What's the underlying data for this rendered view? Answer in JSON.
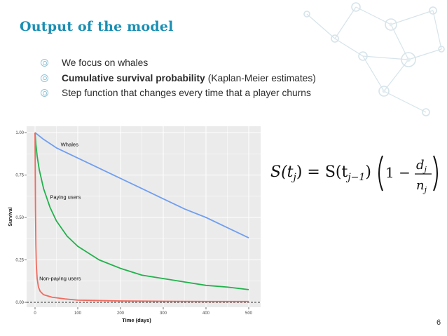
{
  "slide": {
    "title": "Output of the model",
    "page_number": "6"
  },
  "bullets": [
    {
      "strong": "",
      "text": "We focus on whales"
    },
    {
      "strong": "Cumulative survival probability",
      "text": "(Kaplan-Meier estimates)"
    },
    {
      "strong": "",
      "text": "Step function that changes every time that a player churns"
    }
  ],
  "formula": {
    "lhs": "S(t",
    "lhs_sub": "j",
    "eq": ") = S(t",
    "rhs_sub": "j−1",
    "close": ")",
    "one_minus": "1 −",
    "numer": "d",
    "numer_sub": "j",
    "denom": "n",
    "denom_sub": "j"
  },
  "colors": {
    "title": "#1a8fb4",
    "whales": "#6f9ef0",
    "paying": "#22b14c",
    "non_paying": "#f06a5e",
    "panel": "#ebebeb",
    "grid": "#ffffff",
    "decor": "#d6e4ea"
  },
  "chart_data": {
    "type": "line",
    "xlabel": "Time (days)",
    "ylabel": "Survival",
    "xlim": [
      0,
      500
    ],
    "ylim": [
      0,
      1
    ],
    "x_ticks": [
      0,
      100,
      200,
      300,
      400,
      500
    ],
    "x_tick_labels": [
      "0",
      "100",
      "200",
      "300",
      "400",
      "500"
    ],
    "y_ticks": [
      0,
      0.25,
      0.5,
      0.75,
      1
    ],
    "y_tick_labels": [
      "0.00",
      "0.25",
      "0.50",
      "0.75",
      "1.00"
    ],
    "grid": true,
    "reference_line_y": 0,
    "series": [
      {
        "name": "Whales",
        "color_key": "whales",
        "x": [
          0,
          5,
          20,
          50,
          100,
          150,
          200,
          250,
          300,
          350,
          400,
          450,
          500
        ],
        "y": [
          1.0,
          0.99,
          0.96,
          0.91,
          0.85,
          0.79,
          0.73,
          0.67,
          0.61,
          0.55,
          0.5,
          0.44,
          0.38
        ]
      },
      {
        "name": "Paying users",
        "color_key": "paying",
        "x": [
          0,
          2,
          5,
          10,
          20,
          35,
          50,
          75,
          100,
          150,
          200,
          250,
          300,
          350,
          400,
          450,
          500
        ],
        "y": [
          1.0,
          0.93,
          0.86,
          0.78,
          0.67,
          0.56,
          0.48,
          0.39,
          0.33,
          0.25,
          0.2,
          0.16,
          0.14,
          0.12,
          0.1,
          0.09,
          0.075
        ]
      },
      {
        "name": "Non-paying users",
        "color_key": "non_paying",
        "x": [
          0,
          1,
          2,
          3,
          5,
          8,
          12,
          20,
          40,
          70,
          100,
          200,
          300,
          400,
          500
        ],
        "y": [
          1.0,
          0.55,
          0.33,
          0.22,
          0.14,
          0.09,
          0.065,
          0.045,
          0.03,
          0.02,
          0.013,
          0.008,
          0.006,
          0.005,
          0.005
        ]
      }
    ],
    "annotations": [
      {
        "text": "Whales",
        "x": 60,
        "y": 0.92
      },
      {
        "text": "Paying users",
        "x": 35,
        "y": 0.61
      },
      {
        "text": "Non-paying users",
        "x": 10,
        "y": 0.13
      }
    ]
  }
}
